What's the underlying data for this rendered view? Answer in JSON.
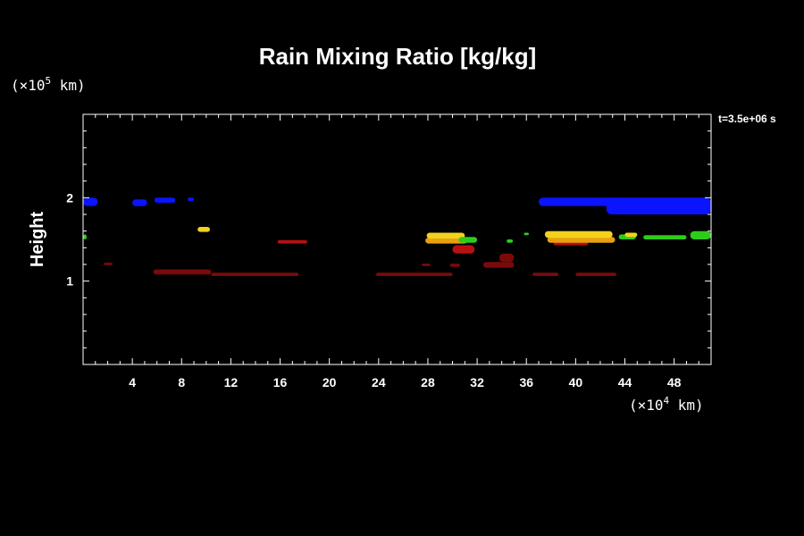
{
  "chart_data": {
    "type": "heatmap",
    "title": "Rain Mixing Ratio [kg/kg]",
    "ylabel": "Height",
    "xlabel": "",
    "x_unit": {
      "prefix": "(×10",
      "exp": "4",
      "suffix": " km)"
    },
    "y_unit": {
      "prefix": "(×10",
      "exp": "5",
      "suffix": " km)"
    },
    "time_label": "t=3.5e+06 s",
    "xlim": [
      0,
      51
    ],
    "ylim": [
      0,
      3
    ],
    "x_ticks": [
      "4",
      "8",
      "12",
      "16",
      "20",
      "24",
      "28",
      "32",
      "36",
      "40",
      "44",
      "48"
    ],
    "y_ticks": [
      "1",
      "2"
    ],
    "grid": false,
    "colors": {
      "blue": "#0a14ff",
      "green": "#2ecc1a",
      "yellow": "#f2d21c",
      "orange": "#e8a010",
      "red": "#b81010",
      "darkred": "#7a0a0a"
    },
    "regions": [
      {
        "color": "blue",
        "x": [
          0.0,
          1.2
        ],
        "y": [
          1.9,
          2.0
        ]
      },
      {
        "color": "blue",
        "x": [
          4.0,
          5.2
        ],
        "y": [
          1.9,
          1.98
        ]
      },
      {
        "color": "blue",
        "x": [
          5.8,
          7.5
        ],
        "y": [
          1.94,
          2.0
        ]
      },
      {
        "color": "blue",
        "x": [
          8.5,
          9.0
        ],
        "y": [
          1.96,
          2.0
        ]
      },
      {
        "color": "blue",
        "x": [
          37.0,
          43.5
        ],
        "y": [
          1.9,
          2.0
        ]
      },
      {
        "color": "blue",
        "x": [
          42.5,
          51.0
        ],
        "y": [
          1.8,
          2.0
        ]
      },
      {
        "color": "green",
        "x": [
          0.0,
          0.3
        ],
        "y": [
          1.5,
          1.56
        ]
      },
      {
        "color": "yellow",
        "x": [
          9.3,
          10.3
        ],
        "y": [
          1.59,
          1.65
        ]
      },
      {
        "color": "red",
        "x": [
          15.8,
          18.2
        ],
        "y": [
          1.45,
          1.49
        ]
      },
      {
        "color": "darkred",
        "x": [
          1.7,
          2.4
        ],
        "y": [
          1.19,
          1.22
        ]
      },
      {
        "color": "darkred",
        "x": [
          5.7,
          10.4
        ],
        "y": [
          1.08,
          1.14
        ]
      },
      {
        "color": "darkred",
        "x": [
          10.4,
          17.5
        ],
        "y": [
          1.06,
          1.1
        ]
      },
      {
        "color": "darkred",
        "x": [
          23.8,
          30.0
        ],
        "y": [
          1.06,
          1.1
        ]
      },
      {
        "color": "darkred",
        "x": [
          27.5,
          28.2
        ],
        "y": [
          1.18,
          1.21
        ]
      },
      {
        "color": "darkred",
        "x": [
          29.8,
          30.6
        ],
        "y": [
          1.17,
          1.21
        ]
      },
      {
        "color": "darkred",
        "x": [
          32.5,
          35.0
        ],
        "y": [
          1.16,
          1.23
        ]
      },
      {
        "color": "darkred",
        "x": [
          33.8,
          35.0
        ],
        "y": [
          1.23,
          1.33
        ]
      },
      {
        "color": "darkred",
        "x": [
          36.5,
          38.6
        ],
        "y": [
          1.06,
          1.1
        ]
      },
      {
        "color": "darkred",
        "x": [
          40.0,
          43.3
        ],
        "y": [
          1.06,
          1.1
        ]
      },
      {
        "color": "red",
        "x": [
          30.0,
          31.8
        ],
        "y": [
          1.33,
          1.43
        ]
      },
      {
        "color": "red",
        "x": [
          38.2,
          41.0
        ],
        "y": [
          1.43,
          1.47
        ]
      },
      {
        "color": "orange",
        "x": [
          27.8,
          31.2
        ],
        "y": [
          1.45,
          1.52
        ]
      },
      {
        "color": "yellow",
        "x": [
          27.9,
          31.0
        ],
        "y": [
          1.51,
          1.58
        ]
      },
      {
        "color": "green",
        "x": [
          30.5,
          32.0
        ],
        "y": [
          1.46,
          1.53
        ]
      },
      {
        "color": "orange",
        "x": [
          37.7,
          43.2
        ],
        "y": [
          1.46,
          1.53
        ]
      },
      {
        "color": "yellow",
        "x": [
          37.5,
          43.0
        ],
        "y": [
          1.52,
          1.6
        ]
      },
      {
        "color": "green",
        "x": [
          34.4,
          34.9
        ],
        "y": [
          1.46,
          1.5
        ]
      },
      {
        "color": "green",
        "x": [
          35.8,
          36.2
        ],
        "y": [
          1.55,
          1.58
        ]
      },
      {
        "color": "green",
        "x": [
          43.5,
          44.9
        ],
        "y": [
          1.5,
          1.56
        ]
      },
      {
        "color": "yellow",
        "x": [
          44.0,
          45.0
        ],
        "y": [
          1.53,
          1.58
        ]
      },
      {
        "color": "green",
        "x": [
          45.5,
          49.0
        ],
        "y": [
          1.5,
          1.55
        ]
      },
      {
        "color": "green",
        "x": [
          49.3,
          51.0
        ],
        "y": [
          1.5,
          1.6
        ]
      }
    ]
  }
}
